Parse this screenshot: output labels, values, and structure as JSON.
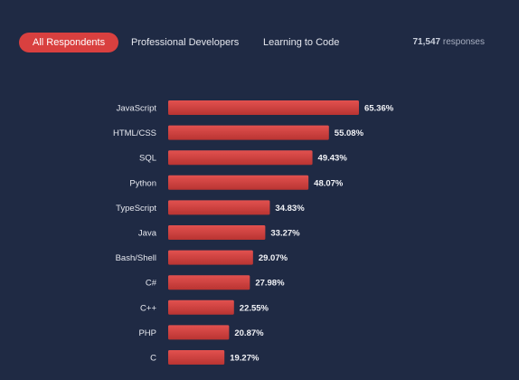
{
  "tabs": [
    {
      "label": "All Respondents",
      "active": true
    },
    {
      "label": "Professional Developers",
      "active": false
    },
    {
      "label": "Learning to Code",
      "active": false
    }
  ],
  "responses": {
    "count": "71,547",
    "label": "responses"
  },
  "colors": {
    "background": "#1f2a44",
    "accent": "#d9403f",
    "bar_top": "#e2514f",
    "bar_bottom": "#b93432"
  },
  "chart_data": {
    "type": "bar",
    "orientation": "horizontal",
    "categories": [
      "JavaScript",
      "HTML/CSS",
      "SQL",
      "Python",
      "TypeScript",
      "Java",
      "Bash/Shell",
      "C#",
      "C++",
      "PHP",
      "C"
    ],
    "values": [
      65.36,
      55.08,
      49.43,
      48.07,
      34.83,
      33.27,
      29.07,
      27.98,
      22.55,
      20.87,
      19.27
    ],
    "value_labels": [
      "65.36%",
      "55.08%",
      "49.43%",
      "48.07%",
      "34.83%",
      "33.27%",
      "29.07%",
      "27.98%",
      "22.55%",
      "20.87%",
      "19.27%"
    ],
    "unit": "%",
    "xlim": [
      0,
      100
    ],
    "grid": false,
    "legend": "none"
  }
}
